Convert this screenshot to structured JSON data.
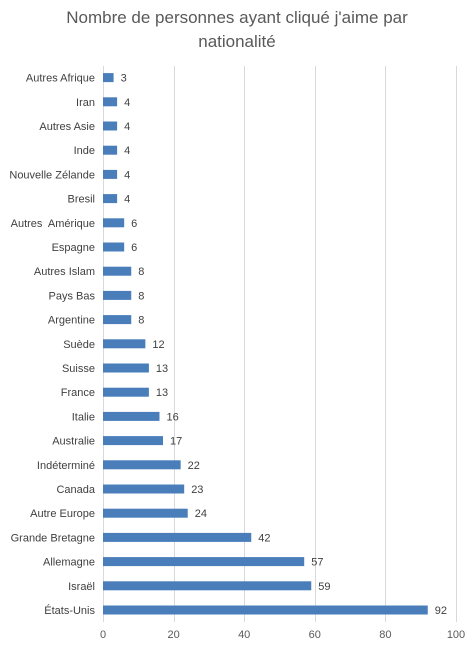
{
  "chart_data": {
    "type": "bar",
    "orientation": "horizontal",
    "title_lines": [
      "Nombre de personnes ayant cliqué j'aime par",
      "nationalité"
    ],
    "categories": [
      "États-Unis",
      "Israël",
      "Allemagne",
      "Grande Bretagne",
      "Autre Europe",
      "Canada",
      "Indéterminé",
      "Australie",
      "Italie",
      "France",
      "Suisse",
      "Suède",
      "Argentine",
      "Pays Bas",
      "Autres Islam",
      "Espagne",
      "Autres  Amérique",
      "Bresil",
      "Nouvelle Zélande",
      "Inde",
      "Autres Asie",
      "Iran",
      "Autres Afrique"
    ],
    "values": [
      92,
      59,
      57,
      42,
      24,
      23,
      22,
      17,
      16,
      13,
      13,
      12,
      8,
      8,
      8,
      6,
      6,
      4,
      4,
      4,
      4,
      4,
      3
    ],
    "xlim": [
      0,
      100
    ],
    "xticks": [
      0,
      20,
      40,
      60,
      80,
      100
    ],
    "grid": "vertical",
    "legend": "none",
    "bar_color": "#4a7ebb",
    "data_labels": true
  }
}
